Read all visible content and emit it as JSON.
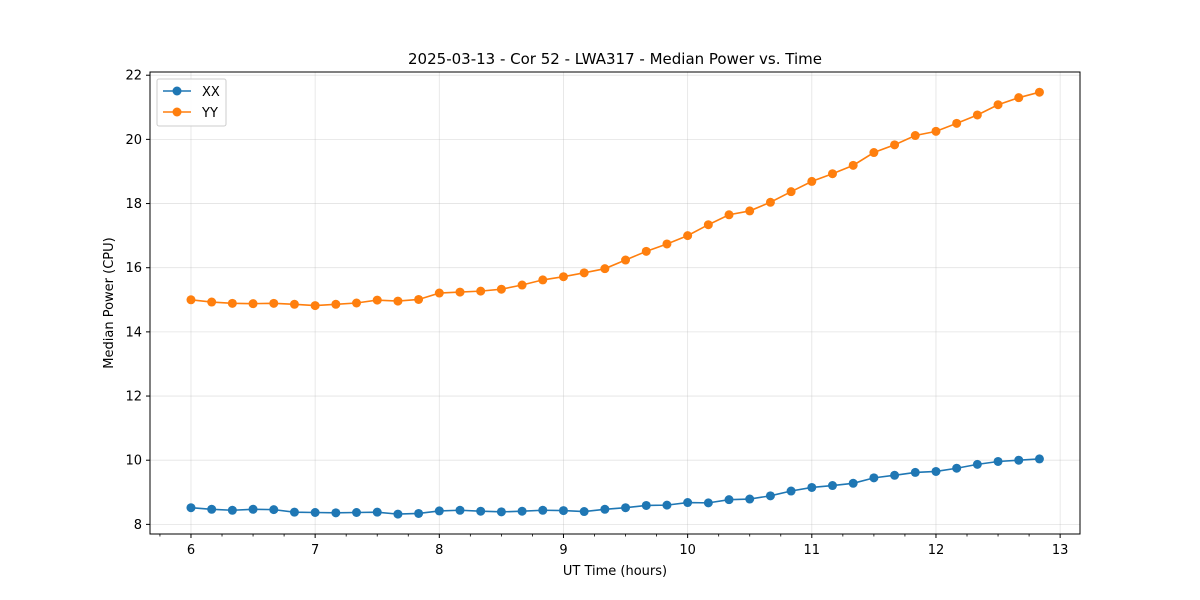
{
  "chart_data": {
    "type": "line",
    "title": "2025-03-13 - Cor 52 - LWA317 - Median Power vs. Time",
    "xlabel": "UT Time (hours)",
    "ylabel": "Median Power (CPU)",
    "xlim": [
      5.67,
      13.16
    ],
    "ylim": [
      7.7,
      22.1
    ],
    "xticks": [
      6,
      7,
      8,
      9,
      10,
      11,
      12,
      13
    ],
    "yticks": [
      8,
      10,
      12,
      14,
      16,
      18,
      20,
      22
    ],
    "grid": true,
    "legend_position": "top-left",
    "x": [
      6.0,
      6.1667,
      6.3333,
      6.5,
      6.6667,
      6.8333,
      7.0,
      7.1667,
      7.3333,
      7.5,
      7.6667,
      7.8333,
      8.0,
      8.1667,
      8.3333,
      8.5,
      8.6667,
      8.8333,
      9.0,
      9.1667,
      9.3333,
      9.5,
      9.6667,
      9.8333,
      10.0,
      10.1667,
      10.3333,
      10.5,
      10.6667,
      10.8333,
      11.0,
      11.1667,
      11.3333,
      11.5,
      11.6667,
      11.8333,
      12.0,
      12.1667,
      12.3333,
      12.5,
      12.6667,
      12.8333
    ],
    "series": [
      {
        "name": "XX",
        "color": "#1f77b4",
        "values": [
          8.52,
          8.47,
          8.44,
          8.47,
          8.46,
          8.38,
          8.37,
          8.36,
          8.37,
          8.38,
          8.32,
          8.34,
          8.42,
          8.44,
          8.41,
          8.39,
          8.41,
          8.44,
          8.43,
          8.4,
          8.47,
          8.52,
          8.59,
          8.6,
          8.68,
          8.67,
          8.77,
          8.79,
          8.89,
          9.04,
          9.15,
          9.21,
          9.28,
          9.45,
          9.53,
          9.62,
          9.65,
          9.75,
          9.87,
          9.96,
          10.0,
          10.04
        ]
      },
      {
        "name": "YY",
        "color": "#ff7f0e",
        "values": [
          15.0,
          14.93,
          14.89,
          14.88,
          14.89,
          14.86,
          14.82,
          14.86,
          14.9,
          14.99,
          14.96,
          15.01,
          15.21,
          15.24,
          15.27,
          15.33,
          15.46,
          15.62,
          15.72,
          15.84,
          15.97,
          16.24,
          16.51,
          16.74,
          17.0,
          17.34,
          17.65,
          17.77,
          18.04,
          18.37,
          18.69,
          18.93,
          19.19,
          19.59,
          19.83,
          20.12,
          20.25,
          20.5,
          20.76,
          21.08,
          21.3,
          21.47
        ]
      }
    ]
  }
}
